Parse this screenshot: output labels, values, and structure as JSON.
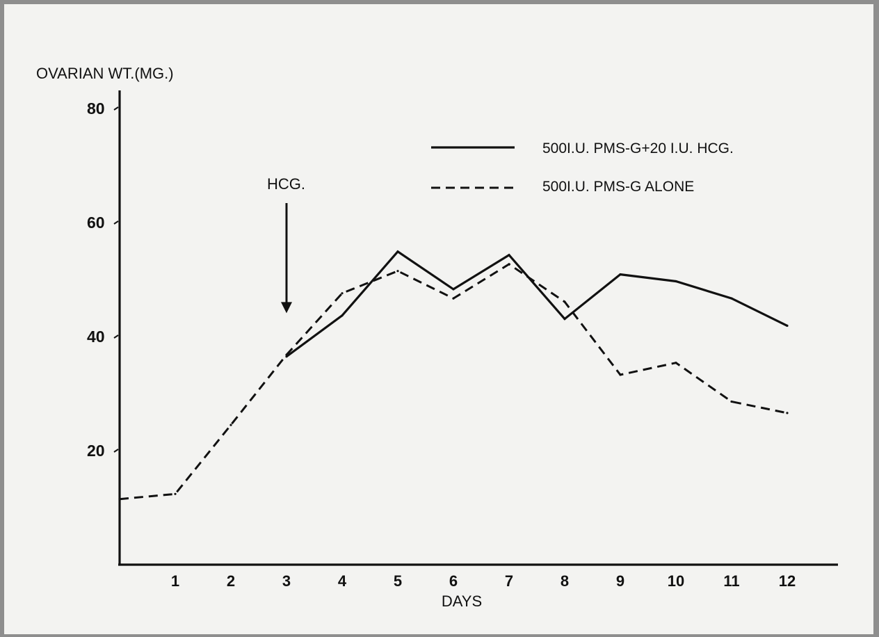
{
  "chart_data": {
    "type": "line",
    "title": "",
    "ylabel": "OVARIAN WT.(MG.)",
    "xlabel": "DAYS",
    "xlim": [
      0,
      13
    ],
    "ylim": [
      0,
      85
    ],
    "x_ticks": [
      "1",
      "2",
      "3",
      "4",
      "5",
      "6",
      "7",
      "8",
      "9",
      "10",
      "11",
      "12"
    ],
    "y_ticks": [
      "20",
      "40",
      "60",
      "80"
    ],
    "grid": false,
    "legend_position": "top-right",
    "annotations": [
      {
        "text": "HCG.",
        "arrow_to": {
          "x": 3,
          "y": 48
        }
      }
    ],
    "series": [
      {
        "name": "500 I.U. PMS-G+20 I.U. HCG.",
        "style": "solid",
        "x": [
          3,
          4,
          5,
          6,
          7,
          8,
          9,
          10,
          11,
          12
        ],
        "y": [
          36.5,
          43.7,
          54.9,
          48.3,
          54.3,
          43.1,
          50.9,
          49.7,
          46.7,
          41.9
        ]
      },
      {
        "name": "500 I.U. PMS-G ALONE",
        "style": "dashed",
        "x": [
          0,
          1,
          2,
          3,
          4,
          5,
          6,
          7,
          8,
          9,
          10,
          11,
          12
        ],
        "y": [
          11.5,
          12.4,
          24.5,
          36.8,
          47.6,
          51.5,
          46.7,
          52.7,
          46.1,
          33.3,
          35.4,
          28.6,
          26.6
        ]
      }
    ]
  },
  "legend": {
    "solid_label": "500I.U. PMS-G+20 I.U. HCG.",
    "dashed_label": "500I.U. PMS-G ALONE"
  }
}
